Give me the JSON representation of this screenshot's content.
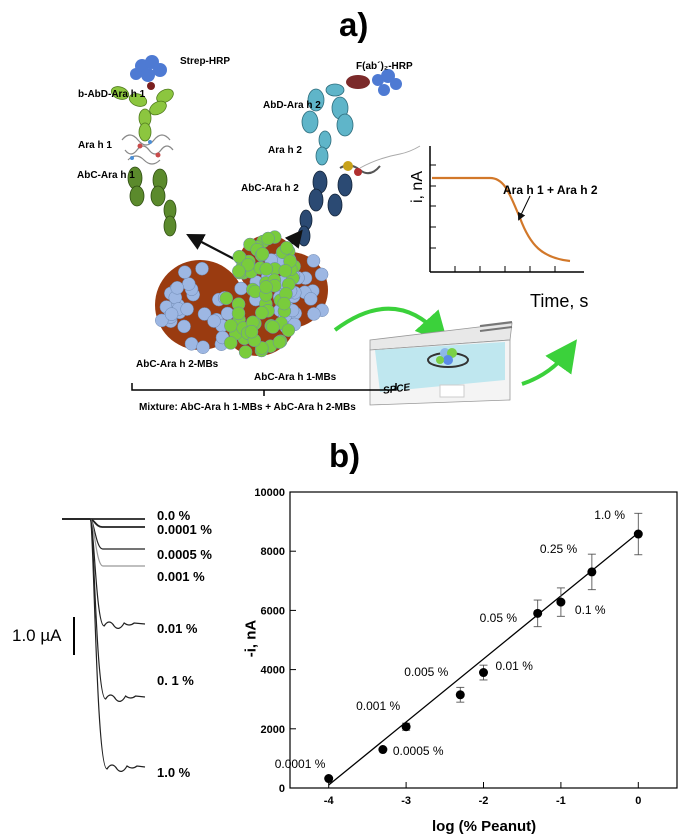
{
  "panel_a": {
    "letter": "a)",
    "labels": {
      "strep_hrp": "Strep-HRP",
      "b_abd": "b-AbD-Ara h 1",
      "ara_h1": "Ara h 1",
      "abc_h1_top": "AbC-Ara h 1",
      "fab_hrp": "F(ab´)₂-HRP",
      "abd_h2": "AbD-Ara h 2",
      "ara_h2": "Ara h 2",
      "abc_h2_top": "AbC-Ara h 2",
      "mbs_h2": "AbC-Ara h 2-MBs",
      "mbs_h1": "AbC-Ara h 1-MBs",
      "spce": "SPCE",
      "mixture": "Mixture: AbC-Ara h 1-MBs + AbC-Ara h 2-MBs"
    },
    "inset": {
      "ylabel": "i, nA",
      "xlabel": "Time, s",
      "curve_label": "Ara h 1 + Ara h 2"
    }
  },
  "panel_b": {
    "letter": "b)",
    "scale_bar": "1.0 µA",
    "traces": [
      {
        "label": "0.0 %",
        "drop": 0
      },
      {
        "label": "0.0001 %",
        "drop": 8
      },
      {
        "label": "0.0005 %",
        "drop": 30
      },
      {
        "label": "0.001 %",
        "drop": 47
      },
      {
        "label": "0.01 %",
        "drop": 107
      },
      {
        "label": "0. 1 %",
        "drop": 180
      },
      {
        "label": "1.0 %",
        "drop": 250
      }
    ]
  },
  "chart_data": {
    "type": "scatter",
    "xlabel": "log (% Peanut)",
    "ylabel": "-i, nA",
    "xlim": [
      -4.5,
      0.5
    ],
    "ylim": [
      0,
      10000
    ],
    "xticks": [
      -4,
      -3,
      -2,
      -1,
      0
    ],
    "yticks": [
      0,
      2000,
      4000,
      6000,
      8000,
      10000
    ],
    "points": [
      {
        "x": -4.0,
        "y": 320,
        "err": 0,
        "label": "0.0001 %"
      },
      {
        "x": -3.3,
        "y": 1300,
        "err": 0,
        "label": "0.0005 %"
      },
      {
        "x": -3.0,
        "y": 2070,
        "err": 120,
        "label": "0.001 %"
      },
      {
        "x": -2.3,
        "y": 3150,
        "err": 250,
        "label": "0.005 %"
      },
      {
        "x": -2.0,
        "y": 3900,
        "err": 250,
        "label": "0.01 %"
      },
      {
        "x": -1.3,
        "y": 5900,
        "err": 450,
        "label": "0.05 %"
      },
      {
        "x": -1.0,
        "y": 6280,
        "err": 480,
        "label": "0.1 %"
      },
      {
        "x": -0.6,
        "y": 7300,
        "err": 600,
        "label": "0.25 %"
      },
      {
        "x": 0.0,
        "y": 8580,
        "err": 700,
        "label": "1.0 %"
      }
    ],
    "fit": {
      "x": [
        -4.0,
        0.0
      ],
      "y": [
        100,
        8620
      ]
    }
  }
}
